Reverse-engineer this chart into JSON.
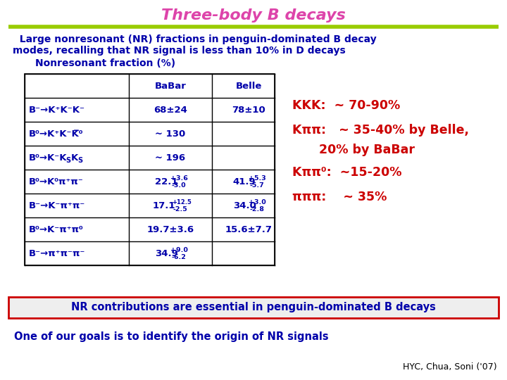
{
  "title": "Three-body B decays",
  "title_color": "#DD44AA",
  "subtitle_line1": "  Large nonresonant (NR) fractions in penguin-dominated B decay",
  "subtitle_line2": "modes, recalling that NR signal is less than 10% in D decays",
  "subtitle_color": "#0000AA",
  "table_label": "Nonresonant fraction (%)",
  "table_label_color": "#0000AA",
  "col_headers": [
    "",
    "BaBar",
    "Belle"
  ],
  "col_header_color": "#0000AA",
  "bg_color": "#FFFFFF",
  "green_line_color": "#99CC00",
  "table_text_color": "#0000AA",
  "bottom_box_text": "NR contributions are essential in penguin-dominated B decays",
  "bottom_box_text_color": "#0000AA",
  "bottom_box_border_color": "#CC0000",
  "footer_text": "One of our goals is to identify the origin of NR signals",
  "footer_text_color": "#0000AA",
  "credit_text": "HYC, Chua, Soni ('07)",
  "credit_color": "#000000",
  "annot_color": "#CC0000",
  "annot1": "KKK:  ~ 70-90%",
  "annot2_a": "Kππ:   ~ 35-40% by Belle,",
  "annot2_b": "        20% by BaBar",
  "annot3": "Kππ⁰:  ~15-20%",
  "annot4": "πππ:    ~ 35%"
}
